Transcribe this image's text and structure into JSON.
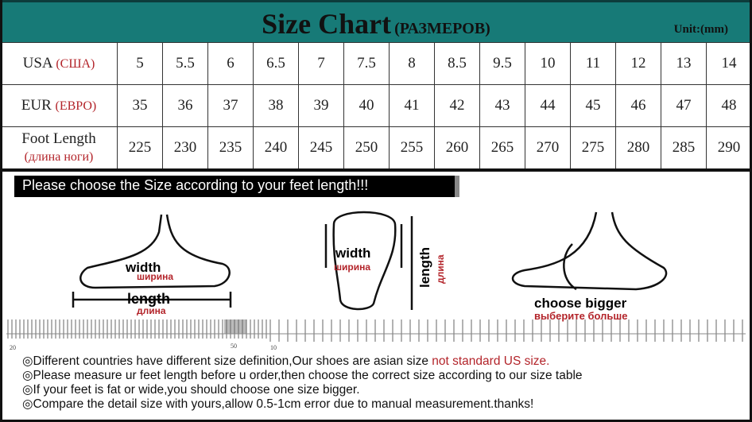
{
  "header": {
    "title": "Size Chart",
    "title_ru": "(РАЗМЕРОВ)",
    "unit": "Unit:(mm)"
  },
  "table": {
    "rows": [
      {
        "label": "USA",
        "label_ru": "(США)",
        "values": [
          "5",
          "5.5",
          "6",
          "6.5",
          "7",
          "7.5",
          "8",
          "8.5",
          "9.5",
          "10",
          "11",
          "12",
          "13",
          "14"
        ]
      },
      {
        "label": "EUR",
        "label_ru": "(ЕВРО)",
        "values": [
          "35",
          "36",
          "37",
          "38",
          "39",
          "40",
          "41",
          "42",
          "43",
          "44",
          "45",
          "46",
          "47",
          "48"
        ]
      },
      {
        "label": "Foot Length",
        "label_ru": "(длина ноги)",
        "values": [
          "225",
          "230",
          "235",
          "240",
          "245",
          "250",
          "255",
          "260",
          "265",
          "270",
          "275",
          "280",
          "285",
          "290"
        ]
      }
    ]
  },
  "banner": "Please choose the Size according to your feet length!!!",
  "illustrations": {
    "width": "width",
    "width_ru": "ширина",
    "length": "length",
    "length_ru": "длина",
    "bigger": "choose bigger",
    "bigger_ru": "выберите больше"
  },
  "ruler": {
    "labels": [
      "20",
      "50",
      "10"
    ]
  },
  "notes": [
    {
      "text": "Different countries have different size definition,Our shoes are asian size ",
      "highlight": "not standard US size."
    },
    {
      "text": "Please measure ur feet length before u order,then choose the correct size according to our size table"
    },
    {
      "text": "If your feet is fat or wide,you should choose one size bigger."
    },
    {
      "text": "Compare the detail size with yours,allow 0.5-1cm error due to manual measurement.thanks!"
    }
  ],
  "colors": {
    "header": "#177a77",
    "accent_red": "#b3242a"
  }
}
